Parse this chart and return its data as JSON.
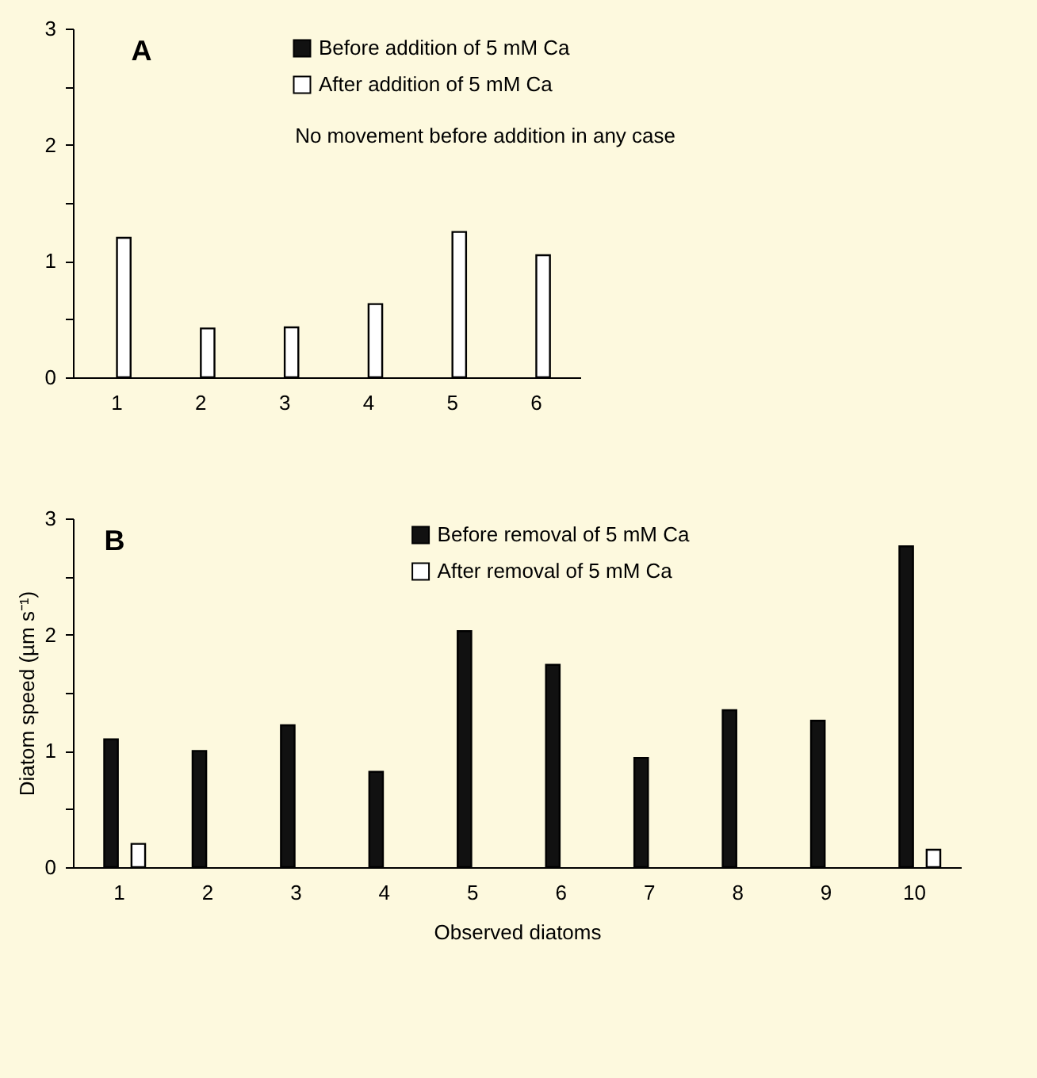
{
  "chart_data": [
    {
      "type": "bar",
      "title": "A",
      "categories": [
        "1",
        "2",
        "3",
        "4",
        "5",
        "6"
      ],
      "series": [
        {
          "name": "Before addition of 5 mM Ca",
          "color": "#111111",
          "values": [
            0,
            0,
            0,
            0,
            0,
            0
          ]
        },
        {
          "name": "After addition of 5 mM Ca",
          "color": "#ffffff",
          "values": [
            1.2,
            0.42,
            0.43,
            0.63,
            1.25,
            1.05
          ]
        }
      ],
      "annotations": [
        "No movement before addition in any case"
      ],
      "ylim": [
        0,
        3
      ],
      "yticks": [
        0,
        {
          "value": 0.5,
          "label": null
        },
        1,
        {
          "value": 1.5,
          "label": null
        },
        2,
        {
          "value": 2.5,
          "label": null
        },
        3
      ],
      "legend": "top right",
      "grid": false
    },
    {
      "type": "bar",
      "title": "B",
      "xlabel": "Observed diatoms",
      "ylabel": "Diatom speed (µm s⁻¹)",
      "categories": [
        "1",
        "2",
        "3",
        "4",
        "5",
        "6",
        "7",
        "8",
        "9",
        "10"
      ],
      "series": [
        {
          "name": "Before removal of 5 mM Ca",
          "color": "#111111",
          "values": [
            1.1,
            1.0,
            1.22,
            0.82,
            2.03,
            1.74,
            0.94,
            1.35,
            1.26,
            2.76
          ]
        },
        {
          "name": "After removal of 5 mM Ca",
          "color": "#ffffff",
          "values": [
            0.2,
            0,
            0,
            0,
            0,
            0,
            0,
            0,
            0,
            0.15
          ]
        }
      ],
      "ylim": [
        0,
        3
      ],
      "yticks": [
        0,
        {
          "value": 0.5,
          "label": null
        },
        1,
        {
          "value": 1.5,
          "label": null
        },
        2,
        {
          "value": 2.5,
          "label": null
        },
        3
      ],
      "legend": "top",
      "grid": false
    }
  ]
}
